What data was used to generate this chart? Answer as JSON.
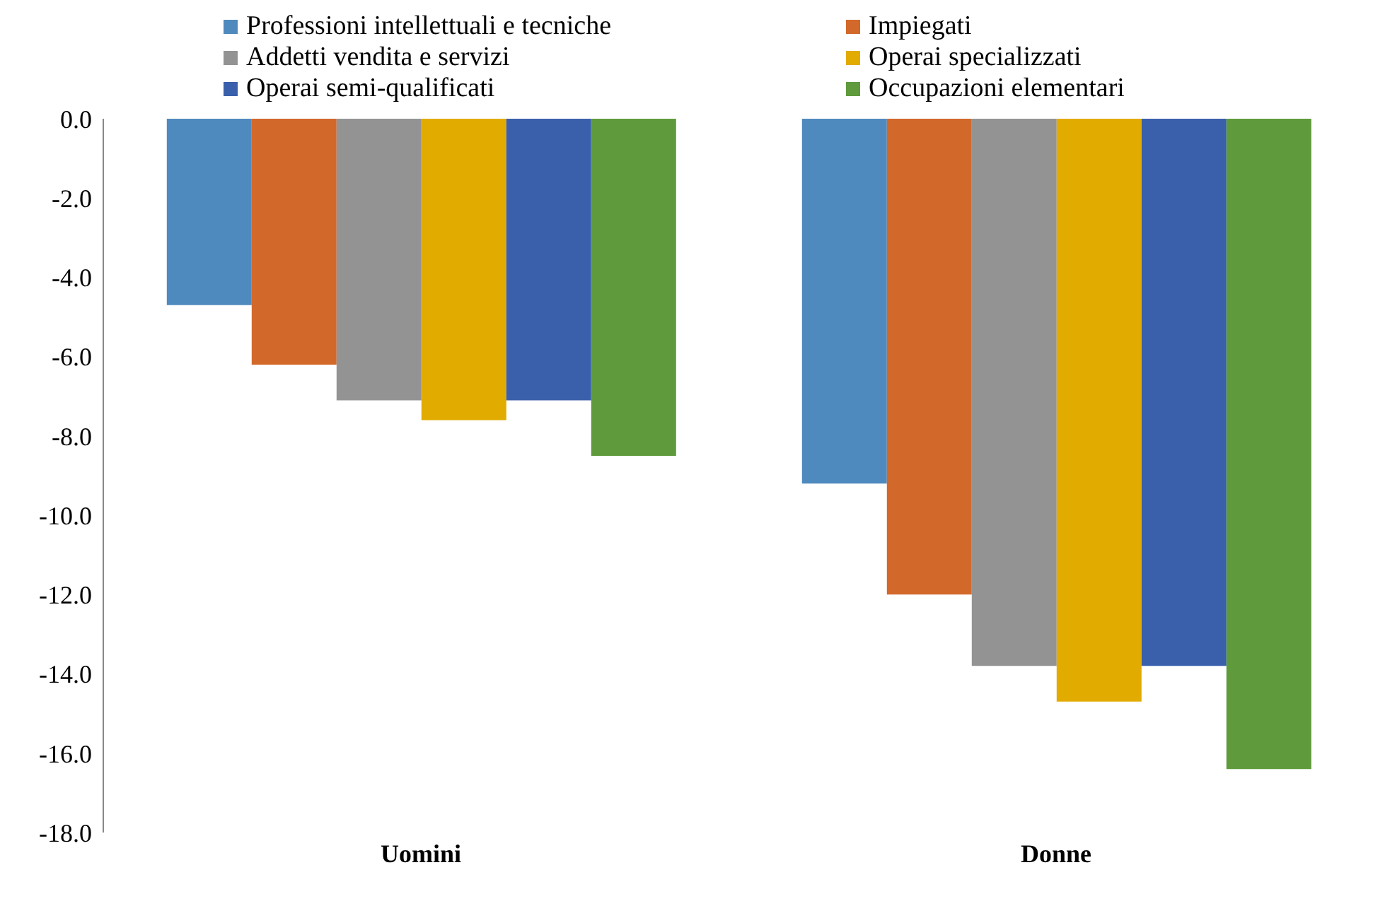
{
  "chart_data": {
    "type": "bar",
    "categories": [
      "Uomini",
      "Donne"
    ],
    "series": [
      {
        "name": "Professioni intellettuali e tecniche",
        "color": "#4f8abe",
        "values": [
          -4.7,
          -9.2
        ]
      },
      {
        "name": "Impiegati",
        "color": "#d2692b",
        "values": [
          -6.2,
          -12.0
        ]
      },
      {
        "name": "Addetti vendita e servizi",
        "color": "#939393",
        "values": [
          -7.1,
          -13.8
        ]
      },
      {
        "name": "Operai specializzati",
        "color": "#e2ab00",
        "values": [
          -7.6,
          -14.7
        ]
      },
      {
        "name": "Operai semi-qualificati",
        "color": "#3a60ab",
        "values": [
          -7.1,
          -13.8
        ]
      },
      {
        "name": "Occupazioni elementari",
        "color": "#5f9a3c",
        "values": [
          -8.5,
          -16.4
        ]
      }
    ],
    "ylim": [
      -18,
      0
    ],
    "yticks": [
      {
        "value": -18,
        "label": "-18.0"
      },
      {
        "value": -16,
        "label": "-16.0"
      },
      {
        "value": -14,
        "label": "-14.0"
      },
      {
        "value": -12,
        "label": "-12.0"
      },
      {
        "value": -10,
        "label": "-10.0"
      },
      {
        "value": -8,
        "label": "-8.0"
      },
      {
        "value": -6,
        "label": "-6.0"
      },
      {
        "value": -4,
        "label": "-4.0"
      },
      {
        "value": -2,
        "label": "-2.0"
      },
      {
        "value": 0,
        "label": "0.0"
      }
    ],
    "grid": false,
    "legend": "top"
  }
}
